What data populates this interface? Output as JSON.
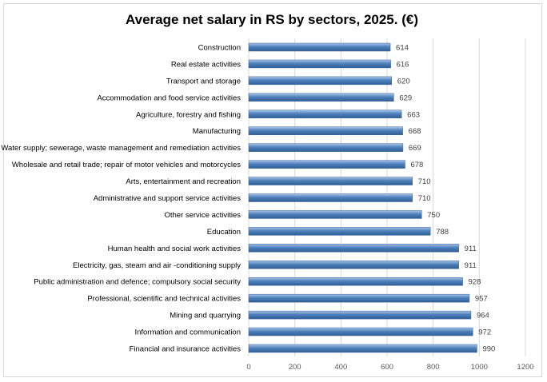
{
  "chart_data": {
    "type": "bar",
    "orientation": "horizontal",
    "title": "Average net salary in RS by sectors, 2025. (€)",
    "xlabel": "",
    "ylabel": "",
    "xlim": [
      0,
      1200
    ],
    "xticks": [
      0,
      200,
      400,
      600,
      800,
      1000,
      1200
    ],
    "grid": true,
    "legend": "none",
    "bar_color": "#4f81bd",
    "categories": [
      "Construction",
      "Real estate activities",
      "Transport and storage",
      "Accommodation and food service activities",
      "Agriculture, forestry and fishing",
      "Manufacturing",
      "Water supply; sewerage, waste management and remediation activities",
      "Wholesale and retail trade; repair of motor vehicles and motorcycles",
      "Arts, entertainment and recreation",
      "Administrative and support service activities",
      "Other service activities",
      "Education",
      "Human health and social work activities",
      "Electricity, gas, steam and air -conditioning supply",
      "Public administration and defence; compulsory social security",
      "Professional, scientific and technical activities",
      "Mining and quarrying",
      "Information and communication",
      "Financial and insurance activities"
    ],
    "values": [
      614,
      616,
      620,
      629,
      663,
      668,
      669,
      678,
      710,
      710,
      750,
      788,
      911,
      911,
      928,
      957,
      964,
      972,
      990
    ]
  }
}
